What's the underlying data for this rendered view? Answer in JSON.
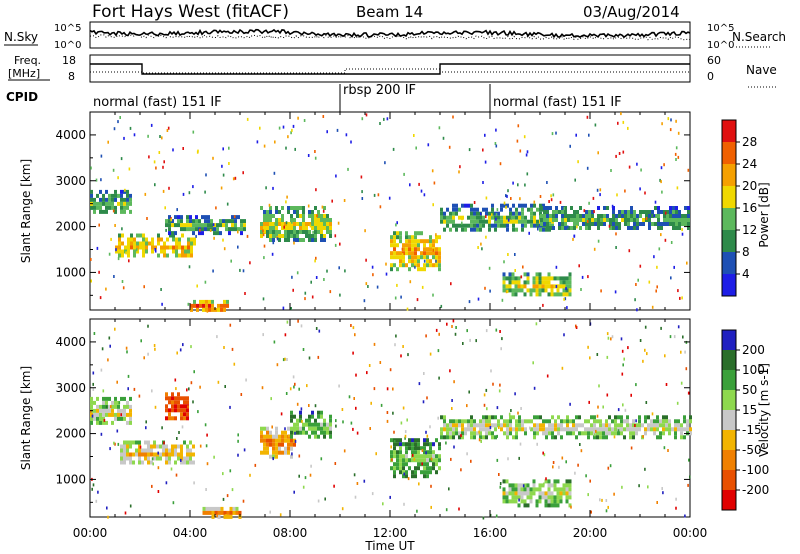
{
  "header": {
    "site": "Fort Hays West (fitACF)",
    "beam": "Beam 14",
    "date": "03/Aug/2014"
  },
  "noise_panel": {
    "left_label": "N.Sky",
    "right_label": "N.Search",
    "tick_top": "10^5",
    "tick_bottom": "10^0"
  },
  "freq_panel": {
    "left_label_1": "Freq.",
    "left_label_2": "[MHz]",
    "right_label": "Nave",
    "left_ticks": [
      "18",
      "8"
    ],
    "right_ticks": [
      "60",
      "0"
    ]
  },
  "cpid": {
    "label": "CPID",
    "segments": [
      {
        "name": "normal (fast) 151 IF",
        "start": 0.0,
        "end": 10.0
      },
      {
        "name": "rbsp 200 IF",
        "start": 10.0,
        "end": 15.9
      },
      {
        "name": "normal (fast) 151 IF",
        "start": 15.9,
        "end": 24.0
      }
    ]
  },
  "x_axis": {
    "label": "Time UT",
    "ticks": [
      "00:00",
      "04:00",
      "08:00",
      "12:00",
      "16:00",
      "20:00",
      "00:00"
    ]
  },
  "colors": {
    "power": [
      "#1e1ee6",
      "#1e50b4",
      "#2e8a4a",
      "#5cb85c",
      "#f0d800",
      "#f5a000",
      "#f06000",
      "#e01010"
    ],
    "velocity": [
      "#2020c0",
      "#2a6e2a",
      "#3aa03a",
      "#8ed84e",
      "#c8c8c8",
      "#f2b400",
      "#f08000",
      "#e85000",
      "#e00000"
    ]
  },
  "chart_data": [
    {
      "type": "heatmap",
      "title": "Power",
      "ylabel": "Slant Range [km]",
      "xlabel": "",
      "xlim": [
        0,
        24
      ],
      "ylim": [
        180,
        4500
      ],
      "yticks": [
        1000,
        2000,
        3000,
        4000
      ],
      "colorbar": {
        "label": "Power [dB]",
        "ticks": [
          "4",
          "8",
          "12",
          "16",
          "20",
          "24",
          "28"
        ]
      },
      "bands": [
        {
          "t0": 0.0,
          "t1": 1.6,
          "r_lo": 2300,
          "r_hi": 2800,
          "level": 3
        },
        {
          "t0": 1.0,
          "t1": 4.2,
          "r_lo": 1350,
          "r_hi": 1850,
          "level": 5
        },
        {
          "t0": 3.0,
          "t1": 6.2,
          "r_lo": 1900,
          "r_hi": 2250,
          "level": 3
        },
        {
          "t0": 6.8,
          "t1": 9.6,
          "r_lo": 1700,
          "r_hi": 2450,
          "level": 4
        },
        {
          "t0": 12.0,
          "t1": 14.0,
          "r_lo": 1100,
          "r_hi": 1900,
          "level": 5
        },
        {
          "t0": 14.0,
          "t1": 18.5,
          "r_lo": 1900,
          "r_hi": 2500,
          "level": 3
        },
        {
          "t0": 18.0,
          "t1": 24.0,
          "r_lo": 1950,
          "r_hi": 2450,
          "level": 3
        },
        {
          "t0": 16.5,
          "t1": 19.2,
          "r_lo": 500,
          "r_hi": 1000,
          "level": 4
        },
        {
          "t0": 4.0,
          "t1": 5.5,
          "r_lo": 200,
          "r_hi": 400,
          "level": 6
        }
      ]
    },
    {
      "type": "heatmap",
      "title": "Velocity",
      "ylabel": "Slant Range [km]",
      "xlabel": "Time UT",
      "xlim": [
        0,
        24
      ],
      "ylim": [
        180,
        4500
      ],
      "yticks": [
        1000,
        2000,
        3000,
        4000
      ],
      "colorbar": {
        "label": "Velocity [m s-1]",
        "ticks": [
          "200",
          "100",
          "50",
          "15",
          "-15",
          "-50",
          "-100",
          "-200"
        ]
      },
      "bands": [
        {
          "t0": 0.0,
          "t1": 1.6,
          "r_lo": 2200,
          "r_hi": 2800,
          "level": 4
        },
        {
          "t0": 3.0,
          "t1": 3.9,
          "r_lo": 2300,
          "r_hi": 2900,
          "level": 8
        },
        {
          "t0": 1.2,
          "t1": 4.2,
          "r_lo": 1350,
          "r_hi": 1850,
          "level": 5
        },
        {
          "t0": 6.8,
          "t1": 8.2,
          "r_lo": 1500,
          "r_hi": 2150,
          "level": 6
        },
        {
          "t0": 8.0,
          "t1": 9.6,
          "r_lo": 1900,
          "r_hi": 2500,
          "level": 3
        },
        {
          "t0": 12.0,
          "t1": 14.0,
          "r_lo": 1100,
          "r_hi": 1900,
          "level": 3
        },
        {
          "t0": 14.0,
          "t1": 24.0,
          "r_lo": 1950,
          "r_hi": 2400,
          "level": 4
        },
        {
          "t0": 16.5,
          "t1": 19.2,
          "r_lo": 450,
          "r_hi": 1000,
          "level": 4
        },
        {
          "t0": 4.5,
          "t1": 6.0,
          "r_lo": 200,
          "r_hi": 400,
          "level": 6
        }
      ]
    }
  ]
}
